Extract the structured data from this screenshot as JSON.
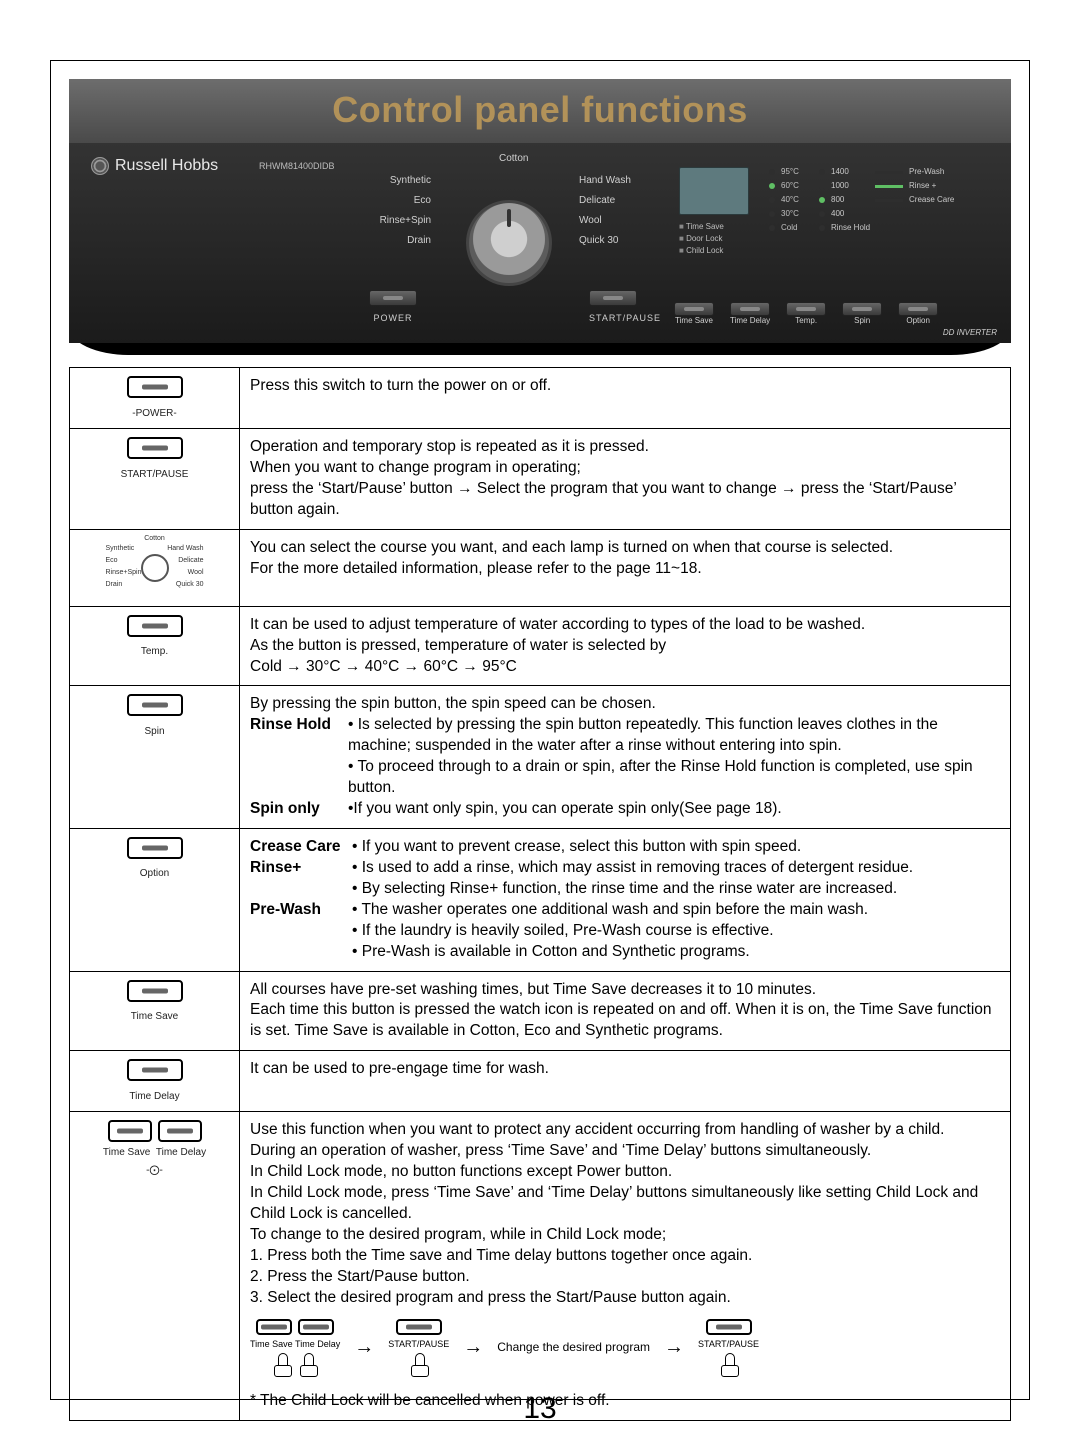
{
  "page": {
    "number": "13"
  },
  "title": "Control panel functions",
  "panel": {
    "brand": "Russell Hobbs",
    "model": "RHWM81400DIDB",
    "programs_top": "Cotton",
    "programs_left": [
      "Synthetic",
      "Eco",
      "Rinse+Spin",
      "Drain"
    ],
    "programs_right": [
      "Hand Wash",
      "Delicate",
      "Wool",
      "Quick 30"
    ],
    "power_btn": "POWER",
    "start_btn": "START/PAUSE",
    "lcd_labels": [
      "Time Save",
      "Door Lock",
      "Child Lock"
    ],
    "temps": [
      {
        "label": "95°C",
        "on": false
      },
      {
        "label": "60°C",
        "on": true
      },
      {
        "label": "40°C",
        "on": false
      },
      {
        "label": "30°C",
        "on": false
      },
      {
        "label": "Cold",
        "on": false
      }
    ],
    "spins": [
      {
        "label": "1400",
        "on": false
      },
      {
        "label": "1000",
        "on": false
      },
      {
        "label": "800",
        "on": true
      },
      {
        "label": "400",
        "on": false
      },
      {
        "label": "Rinse Hold",
        "on": false
      }
    ],
    "options": [
      {
        "label": "Pre-Wash",
        "on": false
      },
      {
        "label": "Rinse +",
        "on": true
      },
      {
        "label": "Crease Care",
        "on": false
      }
    ],
    "bottom_buttons": [
      "Time Save",
      "Time Delay",
      "Temp.",
      "Spin",
      "Option"
    ],
    "dd_badge": "DD INVERTER"
  },
  "rows": {
    "power": {
      "caption": "‑POWER‑",
      "text": "Press this switch to turn the power on or off."
    },
    "startpause": {
      "caption": "START/PAUSE",
      "text": "Operation and temporary stop is repeated as it is pressed.\nWhen you want to change program in operating;\npress the ‘Start/Pause’ button → Select the program that you want to change → press the ‘Start/Pause’ button again."
    },
    "dial": {
      "labels_top": "Cotton",
      "labels_left": [
        "Synthetic",
        "Eco",
        "Rinse+Spin",
        "Drain"
      ],
      "labels_right": [
        "Hand Wash",
        "Delicate",
        "Wool",
        "Quick 30"
      ],
      "text": "You can select the course you want, and each lamp is turned on when that course is selected.\nFor the more detailed information, please refer to the page 11~18."
    },
    "temp": {
      "caption": "Temp.",
      "text": "It can be used to adjust temperature of water according to types of the load to be washed.\nAs the button is pressed, temperature of water is selected by\nCold → 30°C → 40°C → 60°C → 95°C"
    },
    "spin": {
      "caption": "Spin",
      "lead": "By pressing the spin button, the spin speed can be chosen.",
      "rinsehold_label": "Rinse Hold",
      "rinsehold_text": "• Is selected by pressing the spin button repeatedly. This function leaves clothes in the machine; suspended in the water after a rinse without entering into spin.\n• To proceed through to a drain or spin, after the Rinse Hold function is completed, use spin button.",
      "spinonly_label": "Spin only",
      "spinonly_text": "•If you want only spin, you can operate spin only(See page 18)."
    },
    "option": {
      "caption": "Option",
      "crease_label": "Crease Care",
      "crease_text": "• If you want to prevent crease, select this button with spin speed.",
      "rinse_label": "Rinse+",
      "rinse_text": "• Is used to add a rinse, which may assist in removing traces of detergent residue.\n• By selecting Rinse+ function, the rinse time and the rinse water are increased.",
      "prewash_label": "Pre-Wash",
      "prewash_text": "• The washer operates one additional wash and spin before the main wash.\n• If the laundry is heavily soiled, Pre-Wash course is effective.\n• Pre-Wash is available in Cotton and Synthetic programs."
    },
    "timesave": {
      "caption": "Time Save",
      "text": "All courses have pre-set washing times, but Time Save decreases it to 10 minutes.\nEach time this button is pressed the watch icon is repeated on and off. When it is on, the Time Save function is set. Time Save is available in Cotton, Eco and Synthetic programs."
    },
    "timedelay": {
      "caption": "Time Delay",
      "text": "It can be used to pre-engage time for wash."
    },
    "childlock": {
      "caption1": "Time Save",
      "caption2": "Time Delay",
      "sub": "‑⨀‑",
      "body": "Use this function when you want to protect any accident occurring from handling of washer by a child.\nDuring an operation of washer, press ‘Time Save’ and ‘Time Delay’ buttons simultaneously.\nIn Child Lock mode, no button functions except Power button.\nIn Child Lock mode, press ‘Time Save’ and ‘Time Delay’ buttons simultaneously like setting Child Lock and Child Lock is cancelled.\nTo change to the desired program, while in Child Lock mode;\n1. Press both the Time save and Time delay buttons together once again.\n2. Press the Start/Pause button.\n3. Select the desired program and press the Start/Pause button again.",
      "diagram": {
        "a1": "Time Save",
        "a2": "Time Delay",
        "b": "START/PAUSE",
        "mid": "Change the desired program",
        "c": "START/PAUSE"
      },
      "footnote": "* The Child Lock will be cancelled when power is off."
    }
  }
}
